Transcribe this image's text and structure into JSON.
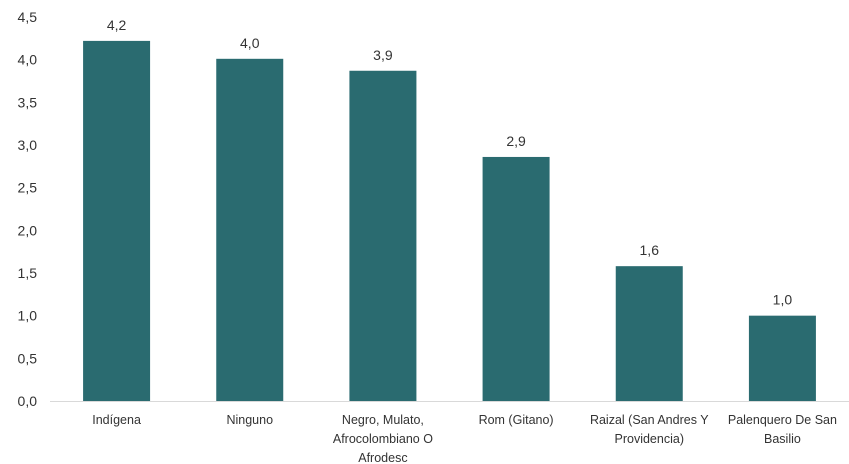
{
  "chart_data": {
    "type": "bar",
    "categories": [
      [
        "Indígena"
      ],
      [
        "Ninguno"
      ],
      [
        "Negro, Mulato,",
        "Afrocolombiano O",
        "Afrodesc"
      ],
      [
        "Rom (Gitano)"
      ],
      [
        "Raizal (San Andres Y",
        "Providencia)"
      ],
      [
        "Palenquero De San",
        "Basilio"
      ]
    ],
    "values": [
      4.22,
      4.01,
      3.87,
      2.86,
      1.58,
      1.0
    ],
    "data_labels": [
      "4,2",
      "4,0",
      "3,9",
      "2,9",
      "1,6",
      "1,0"
    ],
    "yticks": [
      "0,0",
      "0,5",
      "1,0",
      "1,5",
      "2,0",
      "2,5",
      "3,0",
      "3,5",
      "4,0",
      "4,5"
    ],
    "ylim": [
      0,
      4.5
    ],
    "bar_color": "#2a6b70",
    "axis_color": "#d9d9d9",
    "grid": false,
    "legend": "none"
  }
}
